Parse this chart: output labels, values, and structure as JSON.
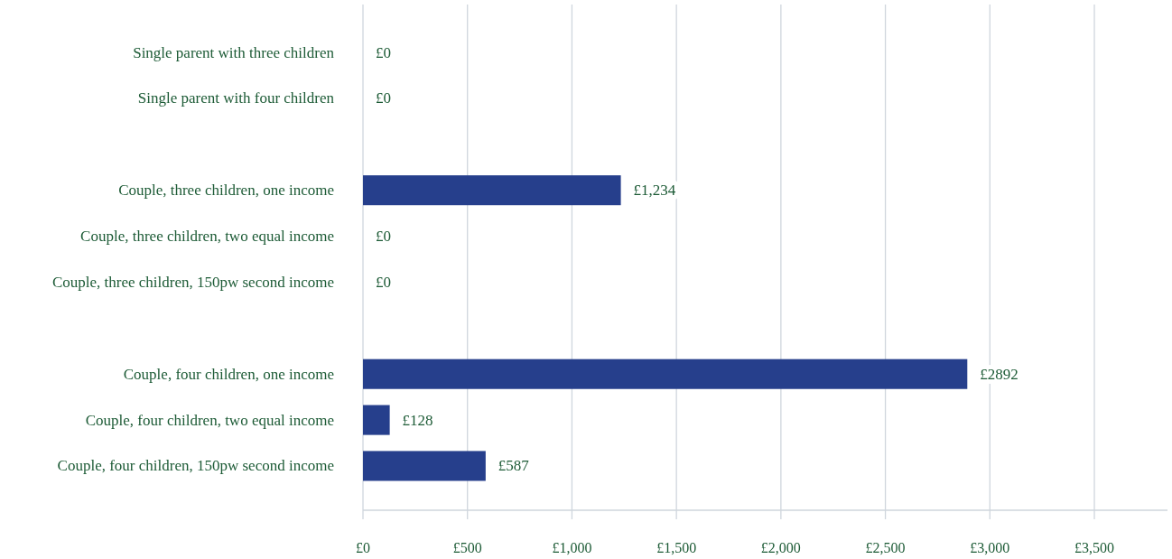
{
  "chart_data": {
    "type": "bar",
    "orientation": "horizontal",
    "categories": [
      "Single parent with three children",
      "Single parent with four children",
      null,
      "Couple, three children, one income",
      "Couple, three children, two equal income",
      "Couple, three children, 150pw second income",
      null,
      "Couple, four children, one income",
      "Couple, four children, two equal income",
      "Couple, four children, 150pw second income"
    ],
    "values": [
      0,
      0,
      null,
      1234,
      0,
      0,
      null,
      2892,
      128,
      587
    ],
    "value_labels": [
      "£0",
      "£0",
      null,
      "£1,234",
      "£0",
      "£0",
      null,
      "£2892",
      "£128",
      "£587"
    ],
    "color": "#263f8c",
    "xlim": [
      0,
      3850
    ],
    "xticks": [
      {
        "value": 0,
        "label": "£0"
      },
      {
        "value": 500,
        "label": "£500"
      },
      {
        "value": 1000,
        "label": "£1,000"
      },
      {
        "value": 1500,
        "label": "£1,500"
      },
      {
        "value": 2000,
        "label": "£2,000"
      },
      {
        "value": 2500,
        "label": "£2,500"
      },
      {
        "value": 3000,
        "label": "£3,000"
      },
      {
        "value": 3500,
        "label": "£3,500"
      }
    ],
    "grid": "x"
  }
}
